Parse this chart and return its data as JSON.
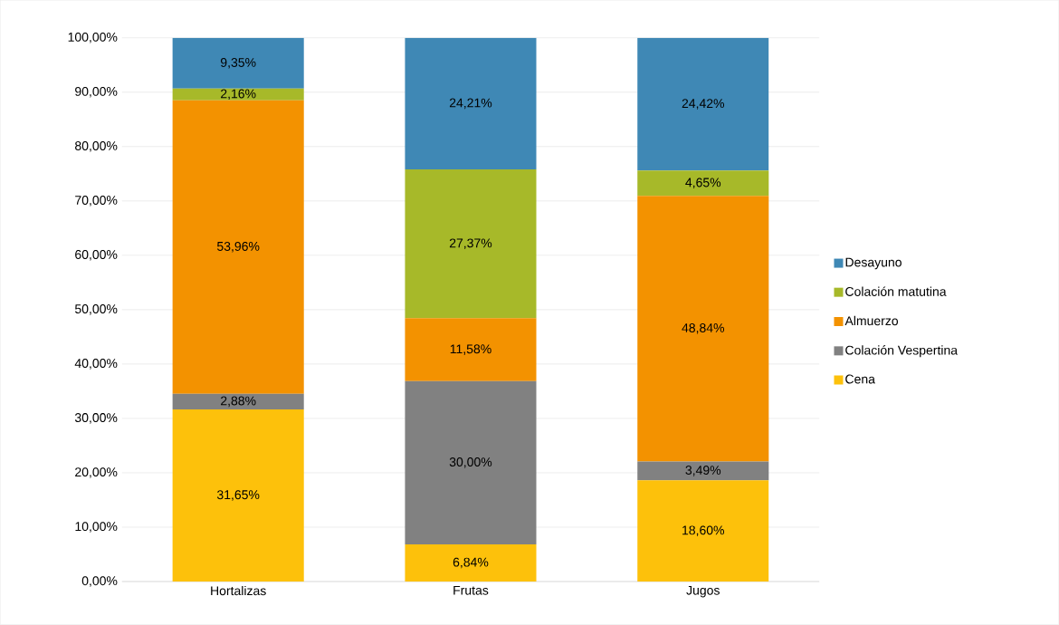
{
  "chart_data": {
    "type": "bar",
    "stacked": true,
    "categories": [
      "Hortalizas",
      "Frutas",
      "Jugos"
    ],
    "series": [
      {
        "name": "Cena",
        "color": "#fdc10b",
        "values": [
          31.65,
          6.84,
          18.6
        ],
        "value_labels": [
          "31,65%",
          "6,84%",
          "18,60%"
        ]
      },
      {
        "name": "Colación Vespertina",
        "color": "#818181",
        "values": [
          2.88,
          30.0,
          3.49
        ],
        "value_labels": [
          "2,88%",
          "30,00%",
          "3,49%"
        ]
      },
      {
        "name": "Almuerzo",
        "color": "#f39200",
        "values": [
          53.96,
          11.58,
          48.84
        ],
        "value_labels": [
          "53,96%",
          "11,58%",
          "48,84%"
        ]
      },
      {
        "name": "Colación matutina",
        "color": "#a7b929",
        "values": [
          2.16,
          27.37,
          4.65
        ],
        "value_labels": [
          "2,16%",
          "27,37%",
          "4,65%"
        ]
      },
      {
        "name": "Desayuno",
        "color": "#3f88b5",
        "values": [
          9.35,
          24.21,
          24.42
        ],
        "value_labels": [
          "9,35%",
          "24,21%",
          "24,42%"
        ]
      }
    ],
    "ylim": [
      0,
      100
    ],
    "yticks": [
      {
        "value": 0,
        "label": "0,00%"
      },
      {
        "value": 10,
        "label": "10,00%"
      },
      {
        "value": 20,
        "label": "20,00%"
      },
      {
        "value": 30,
        "label": "30,00%"
      },
      {
        "value": 40,
        "label": "40,00%"
      },
      {
        "value": 50,
        "label": "50,00%"
      },
      {
        "value": 60,
        "label": "60,00%"
      },
      {
        "value": 70,
        "label": "70,00%"
      },
      {
        "value": 80,
        "label": "80,00%"
      },
      {
        "value": 90,
        "label": "90,00%"
      },
      {
        "value": 100,
        "label": "100,00%"
      }
    ],
    "grid": "y",
    "legend": "right"
  }
}
